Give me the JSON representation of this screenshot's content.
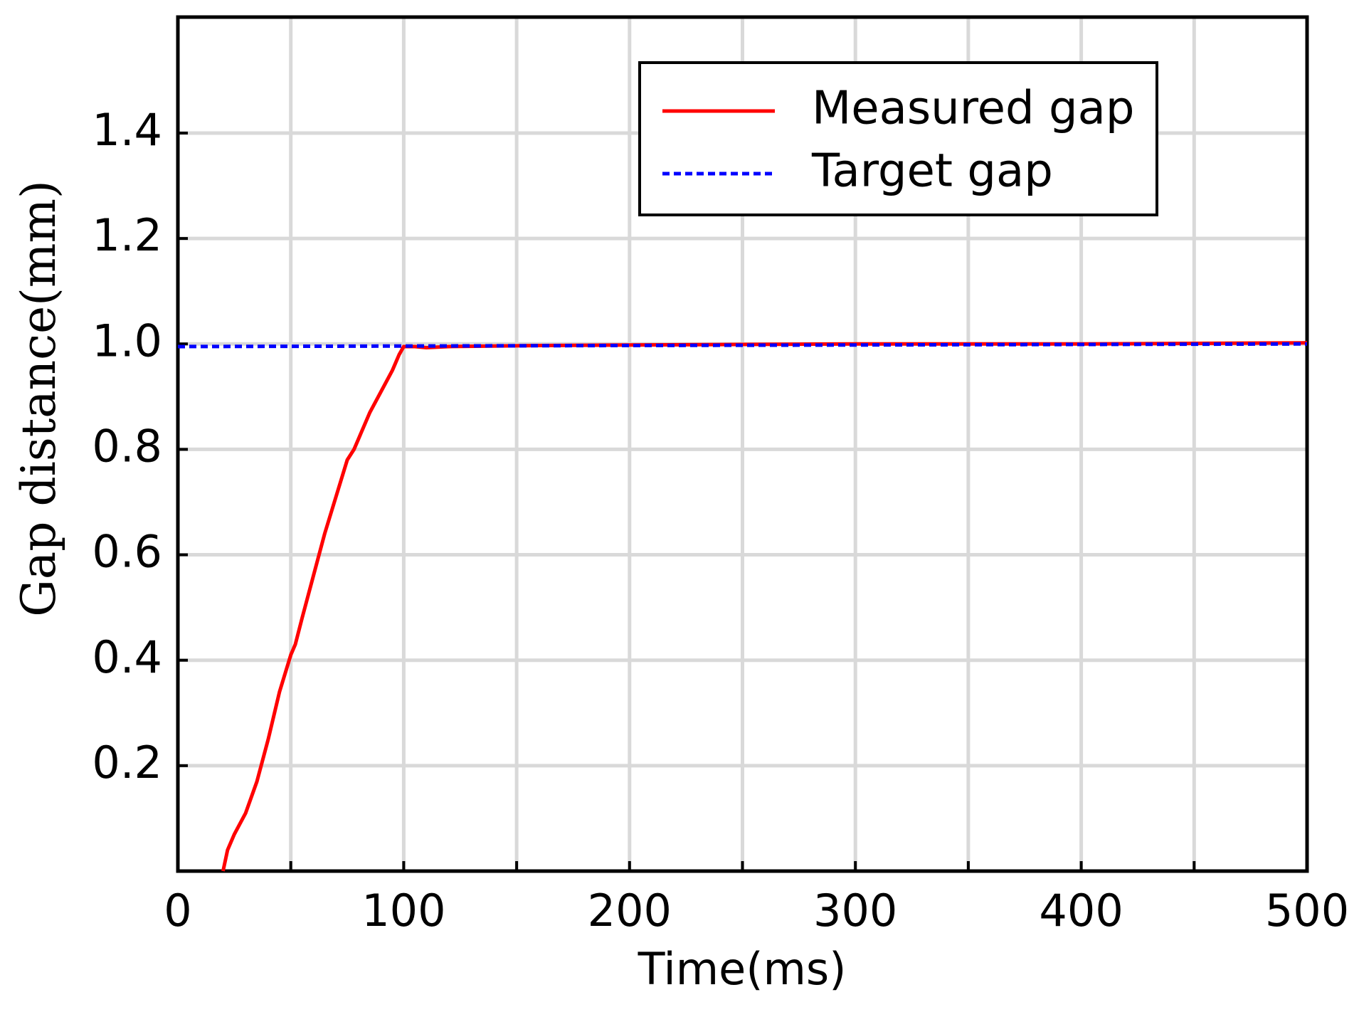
{
  "chart_data": {
    "type": "line",
    "xlabel": "Time(ms)",
    "ylabel": "Gap distance(mm)",
    "xlim": [
      0,
      500
    ],
    "xticks": [
      0,
      100,
      200,
      300,
      400,
      500
    ],
    "xminorticks": [
      50,
      150,
      250,
      350,
      450
    ],
    "ylim": [
      0,
      1.62
    ],
    "yticks": [
      0.2,
      0.4,
      0.6,
      0.8,
      {
        "value": 1,
        "label": "1.0"
      },
      1.2,
      1.4
    ],
    "grid": true,
    "legend": "upper right",
    "series": [
      {
        "name": "Measured gap",
        "color": "#ff0000",
        "linestyle": "solid",
        "x": [
          20,
          22,
          25,
          30,
          35,
          40,
          45,
          50,
          52,
          55,
          60,
          65,
          70,
          75,
          78,
          80,
          85,
          90,
          95,
          98,
          100,
          105,
          110,
          120,
          160,
          200,
          300,
          400,
          500
        ],
        "values": [
          0,
          0.04,
          0.07,
          0.11,
          0.17,
          0.25,
          0.34,
          0.41,
          0.43,
          0.48,
          0.56,
          0.64,
          0.71,
          0.78,
          0.8,
          0.82,
          0.87,
          0.91,
          0.95,
          0.98,
          0.995,
          0.995,
          0.993,
          0.995,
          0.997,
          0.998,
          1.0,
          1.0,
          1.002
        ]
      },
      {
        "name": "Target gap",
        "color": "#0000ff",
        "linestyle": "dotted",
        "x": [
          0,
          500
        ],
        "values": [
          0.995,
          1.0
        ]
      }
    ]
  }
}
